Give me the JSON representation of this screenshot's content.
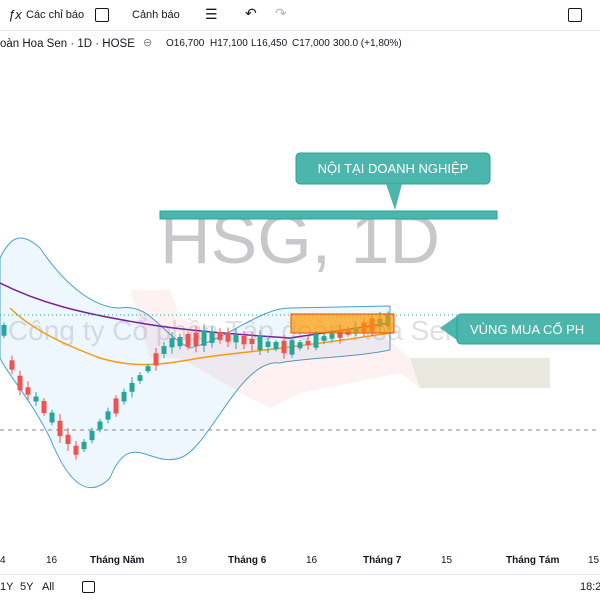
{
  "toolbar": {
    "indicators": "Các chỉ báo",
    "alerts": "Cảnh báo"
  },
  "symbol": {
    "name": "oàn Hoa Sen · 1D · HOSE",
    "open": "O16,700",
    "high": "H17,100",
    "low": "L16,450",
    "close": "C17,000",
    "change": "300.0 (+1,80%)"
  },
  "watermark": {
    "ticker": "HSG, 1D",
    "company": "Công ty Cổ phần Tập đoàn Hoa Sen"
  },
  "annotations": [
    "NỘI TẠI DOANH NGHIỆP",
    "VÙNG MUA CỔ PH"
  ],
  "time_axis": [
    "4",
    "16",
    "Tháng Năm",
    "19",
    "Tháng 6",
    "16",
    "Tháng 7",
    "15",
    "Tháng Tám",
    "15"
  ],
  "bottom_bar": {
    "ranges": [
      "1Y",
      "5Y",
      "All"
    ],
    "clock": "18:2"
  }
}
